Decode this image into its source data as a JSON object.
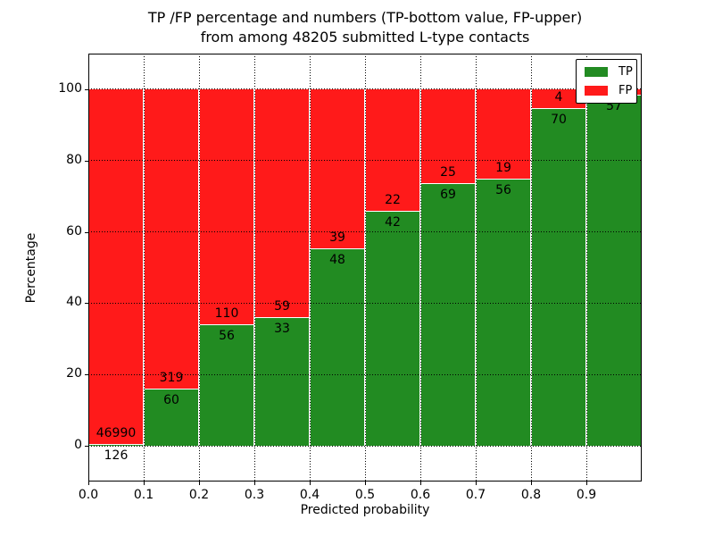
{
  "figure": {
    "title_line1": "TP /FP percentage and numbers (TP-bottom value, FP-upper)",
    "title_line2": "from among 48205 submitted L-type contacts",
    "xlabel": "Predicted probability",
    "ylabel": "Percentage"
  },
  "legend": {
    "position": "upper right",
    "items": [
      {
        "label": "TP",
        "color": "#228b22"
      },
      {
        "label": "FP",
        "color": "#ff1a1a"
      }
    ]
  },
  "chart_data": {
    "type": "bar",
    "subtype": "stacked_percentage_histogram",
    "title": "TP /FP percentage and numbers (TP-bottom value, FP-upper) from among 48205 submitted L-type contacts",
    "xlabel": "Predicted probability",
    "ylabel": "Percentage",
    "total_submitted": 48205,
    "xlim": [
      0.0,
      1.0
    ],
    "ylim": [
      -10,
      110
    ],
    "x_ticks": [
      "0.0",
      "0.1",
      "0.2",
      "0.3",
      "0.4",
      "0.5",
      "0.6",
      "0.7",
      "0.8",
      "0.9"
    ],
    "y_ticks": [
      0,
      20,
      40,
      60,
      80,
      100
    ],
    "grid": true,
    "grid_style": "dotted",
    "colors": {
      "tp": "#228b22",
      "fp": "#ff1a1a"
    },
    "legend_position": "upper right",
    "bins": [
      {
        "x_range": [
          0.0,
          0.1
        ],
        "tp": 126,
        "fp": 46990,
        "tp_pct": 0.27
      },
      {
        "x_range": [
          0.1,
          0.2
        ],
        "tp": 60,
        "fp": 319,
        "tp_pct": 15.83
      },
      {
        "x_range": [
          0.2,
          0.3
        ],
        "tp": 56,
        "fp": 110,
        "tp_pct": 33.73
      },
      {
        "x_range": [
          0.3,
          0.4
        ],
        "tp": 33,
        "fp": 59,
        "tp_pct": 35.87
      },
      {
        "x_range": [
          0.4,
          0.5
        ],
        "tp": 48,
        "fp": 39,
        "tp_pct": 55.17
      },
      {
        "x_range": [
          0.5,
          0.6
        ],
        "tp": 42,
        "fp": 22,
        "tp_pct": 65.63
      },
      {
        "x_range": [
          0.6,
          0.7
        ],
        "tp": 69,
        "fp": 25,
        "tp_pct": 73.4
      },
      {
        "x_range": [
          0.7,
          0.8
        ],
        "tp": 56,
        "fp": 19,
        "tp_pct": 74.67
      },
      {
        "x_range": [
          0.8,
          0.9
        ],
        "tp": 70,
        "fp": 4,
        "tp_pct": 94.59
      },
      {
        "x_range": [
          0.9,
          1.0
        ],
        "tp": 57,
        "fp": null,
        "tp_pct": 98.3
      }
    ]
  }
}
